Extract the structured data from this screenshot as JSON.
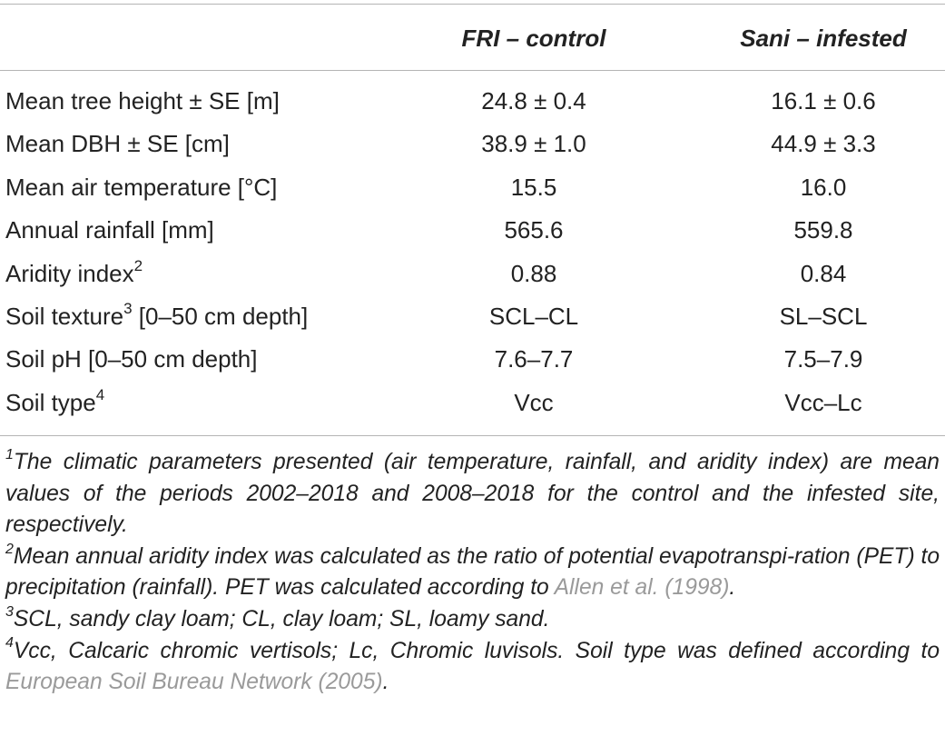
{
  "table": {
    "header": {
      "col1": "FRI – control",
      "col2": "Sani – infested"
    },
    "rows": [
      {
        "label": "Mean tree height ± SE [m]",
        "sup": "",
        "label_rest": "",
        "v1": "24.8 ± 0.4",
        "v2": "16.1 ± 0.6"
      },
      {
        "label": "Mean DBH ± SE [cm]",
        "sup": "",
        "label_rest": "",
        "v1": "38.9 ± 1.0",
        "v2": "44.9 ± 3.3"
      },
      {
        "label": "Mean air temperature [°C]",
        "sup": "",
        "label_rest": "",
        "v1": "15.5",
        "v2": "16.0"
      },
      {
        "label": "Annual rainfall [mm]",
        "sup": "",
        "label_rest": "",
        "v1": "565.6",
        "v2": "559.8"
      },
      {
        "label": "Aridity index",
        "sup": "2",
        "label_rest": "",
        "v1": "0.88",
        "v2": "0.84"
      },
      {
        "label": "Soil texture",
        "sup": "3",
        "label_rest": " [0–50 cm depth]",
        "v1": "SCL–CL",
        "v2": "SL–SCL"
      },
      {
        "label": "Soil pH [0–50 cm depth]",
        "sup": "",
        "label_rest": "",
        "v1": "7.6–7.7",
        "v2": "7.5–7.9"
      },
      {
        "label": "Soil type",
        "sup": "4",
        "label_rest": "",
        "v1": "Vcc",
        "v2": "Vcc–Lc"
      }
    ]
  },
  "footnotes": [
    {
      "num": "1",
      "text": "The climatic parameters presented (air temperature, rainfall, and aridity index) are mean values of the periods 2002–2018 and 2008–2018 for the control and the infested site, respectively.",
      "ref": "",
      "tail": ""
    },
    {
      "num": "2",
      "text": "Mean annual aridity index was calculated as the ratio of potential evapotranspi-ration (PET) to precipitation (rainfall). PET was calculated according to ",
      "ref": "Allen et al. (1998)",
      "tail": "."
    },
    {
      "num": "3",
      "text": "SCL, sandy clay loam; CL, clay loam; SL, loamy sand.",
      "ref": "",
      "tail": ""
    },
    {
      "num": "4",
      "text": "Vcc, Calcaric chromic vertisols; Lc, Chromic luvisols. Soil type was defined according to ",
      "ref": "European Soil Bureau Network (2005)",
      "tail": "."
    }
  ]
}
